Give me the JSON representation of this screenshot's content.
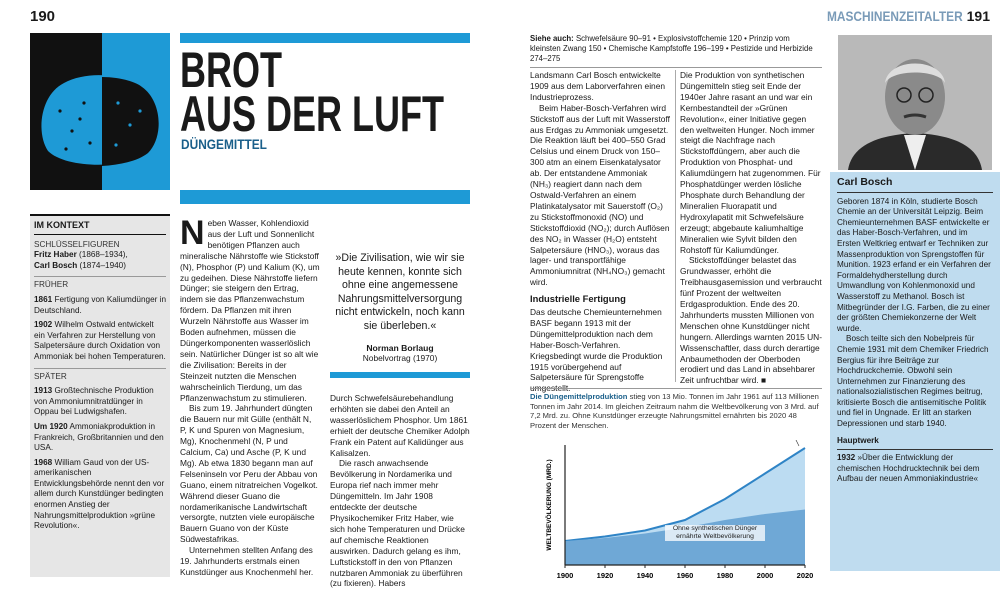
{
  "left_page": {
    "page_number": "190",
    "title_line1": "BROT",
    "title_line2": "AUS DER LUFT",
    "subtitle": "DÜNGEMITTEL",
    "context": {
      "heading": "IM KONTEXT",
      "key_figures_label": "SCHLÜSSELFIGUREN",
      "key_figures": [
        {
          "name": "Fritz Haber",
          "years": "(1868–1934),"
        },
        {
          "name": "Carl Bosch",
          "years": "(1874–1940)"
        }
      ],
      "earlier_label": "FRÜHER",
      "earlier": [
        {
          "year": "1861",
          "text": "Fertigung von Kaliumdünger in Deutschland."
        },
        {
          "year": "1902",
          "text": "Wilhelm Ostwald entwickelt ein Verfahren zur Herstellung von Salpetersäure durch Oxidation von Ammoniak bei hohen Temperaturen."
        }
      ],
      "later_label": "SPÄTER",
      "later": [
        {
          "year": "1913",
          "text": "Großtechnische Produktion von Ammoniumnitratdünger in Oppau bei Ludwigshafen."
        },
        {
          "year": "Um 1920",
          "text": "Ammoniakproduktion in Frankreich, Großbritannien und den USA."
        },
        {
          "year": "1968",
          "text": "William Gaud von der US-amerikanischen Entwicklungsbehörde nennt den vor allem durch Kunstdünger bedingten enormen Anstieg der Nahrungsmittelproduktion »grüne Revolution«."
        }
      ]
    },
    "drop_cap": "N",
    "column_1": [
      "eben Wasser, Kohlendioxid aus der Luft und Sonnenlicht benötigen Pflanzen auch mineralische Nährstoffe wie Stickstoff (N), Phosphor (P) und Kalium (K), um zu gedeihen. Diese Nährstoffe liefern Dünger; sie steigern den Ertrag, indem sie das Pflanzenwachstum fördern. Da Pflanzen mit ihren Wurzeln Nährstoffe aus Wasser im Boden aufnehmen, müssen die Düngerkomponenten wasserlöslich sein. Natürlicher Dünger ist so alt wie die Zivilisation: Bereits in der Steinzeit nutzten die Menschen wahrscheinlich Tierdung, um das Pflanzenwachstum zu stimulieren.",
      "Bis zum 19. Jahrhundert düngten die Bauern nur mit Gülle (enthält N, P, K und Spuren von Magnesium, Mg), Knochenmehl (N, P und Calcium, Ca) und Asche (P, K und Mg). Ab etwa 1830 begann man auf Felseninseln vor Peru der Abbau von Guano, einem nitratreichen Vogelkot. Während dieser Guano die nordamerikanische Landwirtschaft versorgte, nutzten viele europäische Bauern Guano von der Küste Südwestafrikas.",
      "Unternehmen stellten Anfang des 19. Jahrhunderts erstmals einen Kunstdünger aus Knochenmehl her."
    ],
    "quote": {
      "text": "»Die Zivilisation, wie wir sie heute kennen, konnte sich ohne eine angemessene Nahrungsmittelversorgung nicht entwickeln, noch kann sie überleben.«",
      "author": "Norman Borlaug",
      "source": "Nobelvortrag (1970)"
    },
    "column_2": [
      "Durch Schwefelsäurebehandlung erhöhten sie dabei den Anteil an wasserlöslichem Phosphor. Um 1861 erhielt der deutsche Chemiker Adolph Frank ein Patent auf Kalidünger aus Kalisalzen.",
      "Die rasch anwachsende Bevölkerung in Nordamerika und Europa rief nach immer mehr Düngemitteln. Im Jahr 1908 entdeckte der deutsche Physikochemiker Fritz Haber, wie sich hohe Temperaturen und Drücke auf chemische Reaktionen auswirken. Dadurch gelang es ihm, Luftstickstoff in den von Pflanzen nutzbaren Ammoniak zu überführen (zu fixieren). Habers"
    ]
  },
  "right_page": {
    "section": "MASCHINENZEITALTER",
    "page_number": "191",
    "see_also_label": "Siehe auch:",
    "see_also": "Schwefelsäure 90–91 • Explosivstoffchemie 120 • Prinzip vom kleinsten Zwang 150 • Chemische Kampfstoffe 196–199 • Pestizide und Herbizide 274–275",
    "column_1_before": [
      "Landsmann Carl Bosch entwickelte 1909 aus dem Laborverfahren einen Industrieprozess.",
      "Beim Haber-Bosch-Verfahren wird Stickstoff aus der Luft mit Wasserstoff aus Erdgas zu Ammoniak umgesetzt. Die Reaktion läuft bei 400–550 Grad Celsius und einem Druck von 150–300 atm an einem Eisenkatalysator ab. Der entstandene Ammoniak (NH₃) reagiert dann nach dem Ostwald-Verfahren an einem Platinkatalysator mit Sauerstoff (O₂) zu Stickstoffmonoxid (NO) und Stickstoffdioxid (NO₂); durch Auflösen des NO₂ in Wasser (H₂O) entsteht Salpetersäure (HNO₃), woraus das lager- und transportfähige Ammoniumnitrat (NH₄NO₃) gemacht wird."
    ],
    "heading": "Industrielle Fertigung",
    "column_1_after": [
      "Das deutsche Chemieunternehmen BASF begann 1913 mit der Düngemittelproduktion nach dem Haber-Bosch-Verfahren. Kriegsbedingt wurde die Produktion 1915 vorübergehend auf Salpetersäure für Sprengstoffe umgestellt."
    ],
    "column_2": [
      "Die Produktion von synthetischen Düngemitteln stieg seit Ende der 1940er Jahre rasant an und war ein Kernbestandteil der »Grünen Revolution«, einer Initiative gegen den weltweiten Hunger. Noch immer steigt die Nachfrage nach Stickstoffdüngern, aber auch die Produktion von Phosphat- und Kaliumdüngern hat zugenommen. Für Phosphatdünger werden lösliche Phosphate durch Behandlung der Mineralien Fluorapatit und Hydroxylapatit mit Schwefelsäure erzeugt; abgebaute kaliumhaltige Mineralien wie Sylvit bilden den Rohstoff für Kaliumdünger.",
      "Stickstoffdünger belastet das Grundwasser, erhöht die Treibhausgasemission und verbraucht fünf Prozent der weltweiten Erdgasproduktion. Ende des 20. Jahrhunderts mussten Millionen von Menschen ohne Kunstdünger nicht hungern. Allerdings warnten 2015 UN-Wissenschaftler, dass durch derartige Anbaumethoden der Oberboden erodiert und das Land in absehbarer Zeit unfruchtbar wird. ■"
    ],
    "profile": {
      "name": "Carl Bosch",
      "bio_1": "Geboren 1874 in Köln, studierte Bosch Chemie an der Universität Leipzig. Beim Chemieunternehmen BASF entwickelte er das Haber-Bosch-Verfahren, und im Ersten Weltkrieg entwarf er Techniken zur Massenproduktion von Sprengstoffen für Munition. 1923 erfand er ein Verfahren der Formaldehydherstellung durch Umwandlung von Kohlenmonoxid und Wasserstoff zu Methanol. Bosch ist Mitbegründer der I.G. Farben, die zu einer der größten Chemiekonzerne der Welt wurde.",
      "bio_2": "Bosch teilte sich den Nobelpreis für Chemie 1931 mit dem Chemiker Friedrich Bergius für ihre Beiträge zur Hochdruckchemie. Obwohl sein Unternehmen zur Finanzierung des nationalsozialistischen Regimes beitrug, kritisierte Bosch die antisemitische Politik und fiel in Ungnade. Er litt an starken Depressionen und starb 1940.",
      "main_work_label": "Hauptwerk",
      "main_work_year": "1932",
      "main_work": "»Über die Entwicklung der chemischen Hochdrucktechnik bei dem Aufbau der neuen Ammoniakindustrie«"
    }
  },
  "chart_data": {
    "type": "area",
    "title": "Die Düngemittelproduktion",
    "subtitle": "stieg von 13 Mio. Tonnen im Jahr 1961 auf 113 Millionen Tonnen im Jahr 2014. Im gleichen Zeitraum nahm die Weltbevölkerung von 3 Mrd. auf 7,2 Mrd. zu. Ohne Kunstdünger erzeugte Nahrungsmittel ernährten bis 2020 48 Prozent der Menschen.",
    "y_label": "WELTBEVÖLKERUNG (MRD.)",
    "x": [
      1900,
      1920,
      1940,
      1960,
      1980,
      2000,
      2020
    ],
    "xlim": [
      1900,
      2020
    ],
    "xticks": [
      1900,
      1920,
      1940,
      1960,
      1980,
      2000,
      2020
    ],
    "ylim": [
      0,
      8
    ],
    "series": [
      {
        "name": "Weltbevölkerung",
        "color": "#bcdcf2",
        "line_color": "#2f84c6",
        "values": [
          1.6,
          1.9,
          2.3,
          3.0,
          4.4,
          6.1,
          7.8
        ]
      },
      {
        "name": "Ohne synthetischen Dünger ernährte Weltbevölkerung",
        "color": "#6fa8d6",
        "values": [
          1.6,
          1.8,
          2.1,
          2.5,
          3.0,
          3.4,
          3.7
        ]
      }
    ]
  }
}
